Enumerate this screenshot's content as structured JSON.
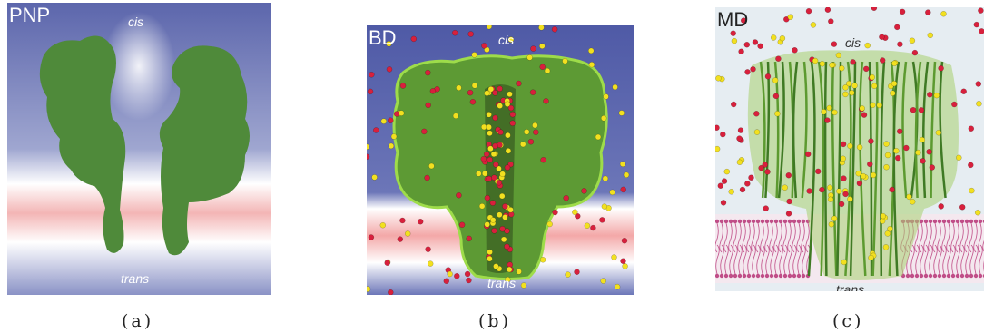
{
  "panels": [
    {
      "tag": "PNP",
      "cis": "cis",
      "trans": "trans",
      "caption": "(a)"
    },
    {
      "tag": "BD",
      "cis": "cis",
      "trans": "trans",
      "caption": "(b)"
    },
    {
      "tag": "MD",
      "cis": "cis",
      "trans": "trans",
      "caption": "(c)"
    }
  ],
  "colors": {
    "protein": "#4f8a3a",
    "protein_bright": "#7fbf3a",
    "solvent": "#5560a8",
    "membrane": "#f0a0a0",
    "ion_cation": "#d8203c",
    "ion_anion": "#f2e020",
    "lipid": "#c04e88"
  }
}
